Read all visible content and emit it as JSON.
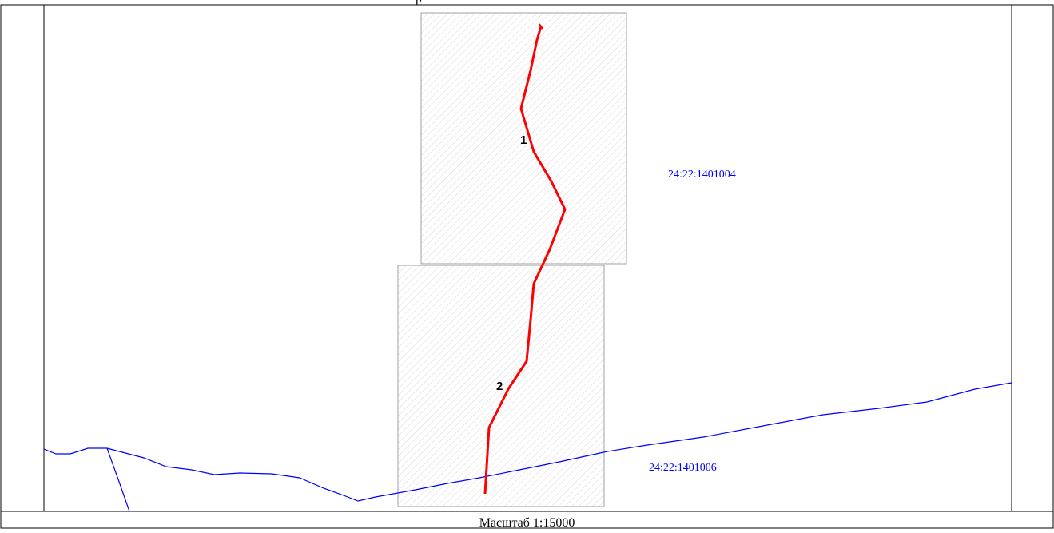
{
  "top_caption": "р",
  "scale_text": "Масштаб 1:15000",
  "parcels": [
    {
      "number": "1"
    },
    {
      "number": "2"
    }
  ],
  "cadastral_labels": [
    {
      "text": "24:22:1401004"
    },
    {
      "text": "24:22:1401006"
    }
  ],
  "colors": {
    "route": "#ff0000",
    "boundary": "#0000ff",
    "sheet_border": "#a0a0a0",
    "frame": "#000000"
  }
}
